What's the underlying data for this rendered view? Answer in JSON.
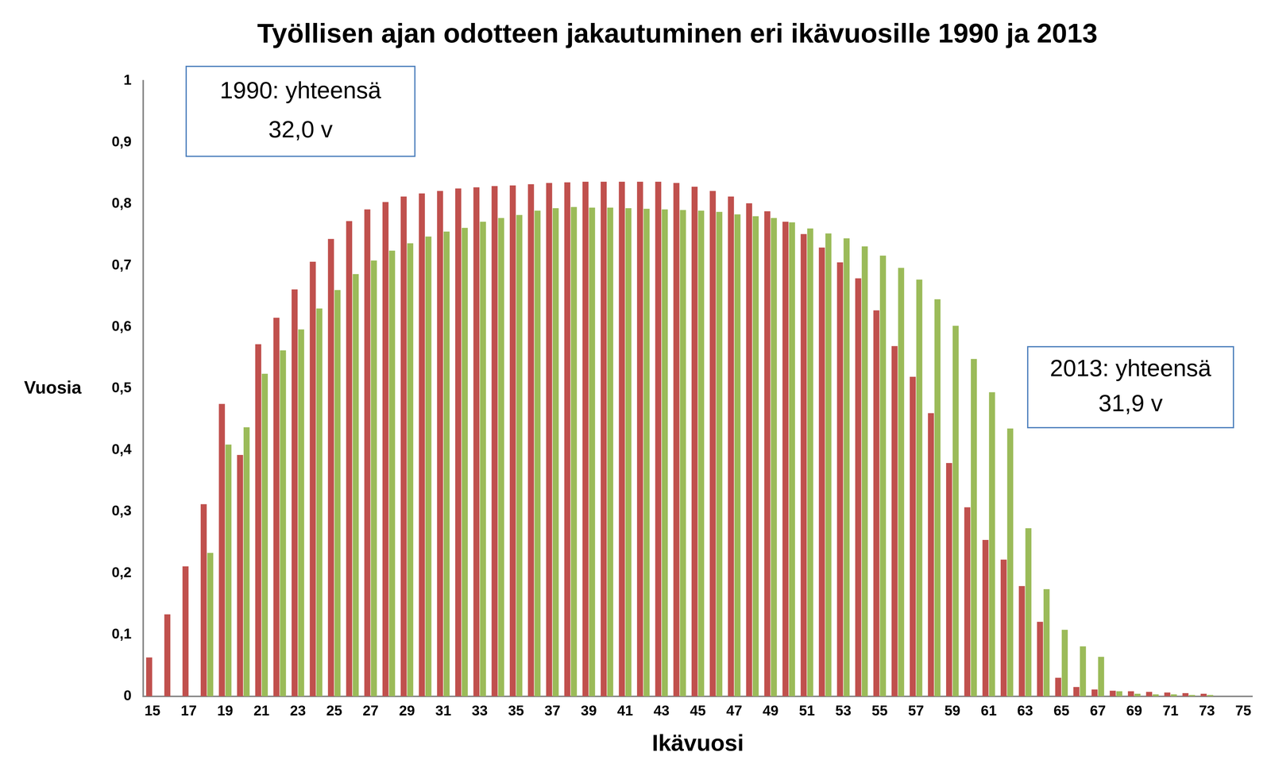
{
  "chart_data": {
    "type": "bar",
    "title": "Työllisen ajan odotteen jakautuminen eri ikävuosille 1990 ja 2013",
    "x_label": "Ikävuosi",
    "y_label": "Vuosia",
    "categories": [
      15,
      null,
      17,
      null,
      19,
      null,
      21,
      null,
      23,
      null,
      25,
      null,
      27,
      null,
      29,
      null,
      31,
      null,
      33,
      null,
      35,
      null,
      37,
      null,
      39,
      null,
      41,
      null,
      43,
      null,
      45,
      null,
      47,
      null,
      49,
      null,
      51,
      null,
      53,
      null,
      55,
      null,
      57,
      null,
      59,
      null,
      61,
      null,
      63,
      null,
      65,
      null,
      67,
      null,
      69,
      null,
      71,
      null,
      73,
      null,
      75
    ],
    "series": [
      {
        "name": "1990",
        "color": "#c0504d",
        "values": [
          0.063,
          0.133,
          0.211,
          0.312,
          0.475,
          0.392,
          0.572,
          0.615,
          0.661,
          0.706,
          0.743,
          0.772,
          0.791,
          0.803,
          0.812,
          0.817,
          0.821,
          0.825,
          0.827,
          0.829,
          0.83,
          0.832,
          0.834,
          0.835,
          0.836,
          0.836,
          0.836,
          0.836,
          0.836,
          0.834,
          0.828,
          0.821,
          0.812,
          0.801,
          0.788,
          0.771,
          0.751,
          0.729,
          0.705,
          0.679,
          0.627,
          0.569,
          0.519,
          0.46,
          0.379,
          0.307,
          0.254,
          0.222,
          0.179,
          0.121,
          0.03,
          0.015,
          0.011,
          0.009,
          0.008,
          0.007,
          0.006,
          0.005,
          0.004,
          0,
          0
        ]
      },
      {
        "name": "2013",
        "color": "#9bbb59",
        "values": [
          0,
          0,
          0,
          0.233,
          0.409,
          0.437,
          0.524,
          0.562,
          0.596,
          0.63,
          0.66,
          0.686,
          0.708,
          0.724,
          0.736,
          0.747,
          0.755,
          0.761,
          0.771,
          0.777,
          0.782,
          0.789,
          0.793,
          0.795,
          0.794,
          0.794,
          0.793,
          0.792,
          0.791,
          0.79,
          0.789,
          0.787,
          0.783,
          0.78,
          0.777,
          0.77,
          0.76,
          0.752,
          0.744,
          0.731,
          0.716,
          0.696,
          0.677,
          0.645,
          0.602,
          0.548,
          0.494,
          0.435,
          0.273,
          0.174,
          0.108,
          0.081,
          0.064,
          0.008,
          0.004,
          0.003,
          0.003,
          0.002,
          0.002,
          0,
          0
        ]
      }
    ],
    "ylim": [
      0,
      1
    ],
    "yticks": [
      0,
      {
        "value": 0.1,
        "label": "0,1"
      },
      {
        "value": 0.2,
        "label": "0,2"
      },
      {
        "value": 0.3,
        "label": "0,3"
      },
      {
        "value": 0.4,
        "label": "0,4"
      },
      {
        "value": 0.5,
        "label": "0,5"
      },
      {
        "value": 0.6,
        "label": "0,6"
      },
      {
        "value": 0.7,
        "label": "0,7"
      },
      {
        "value": 0.8,
        "label": "0,8"
      },
      {
        "value": 0.9,
        "label": "0,9"
      },
      1
    ],
    "annotations": [
      {
        "series": "1990",
        "lines": [
          "1990: yhteensä",
          "32,0 v"
        ]
      },
      {
        "series": "2013",
        "lines": [
          "2013: yhteensä",
          "31,9 v"
        ]
      }
    ],
    "grid": false
  }
}
